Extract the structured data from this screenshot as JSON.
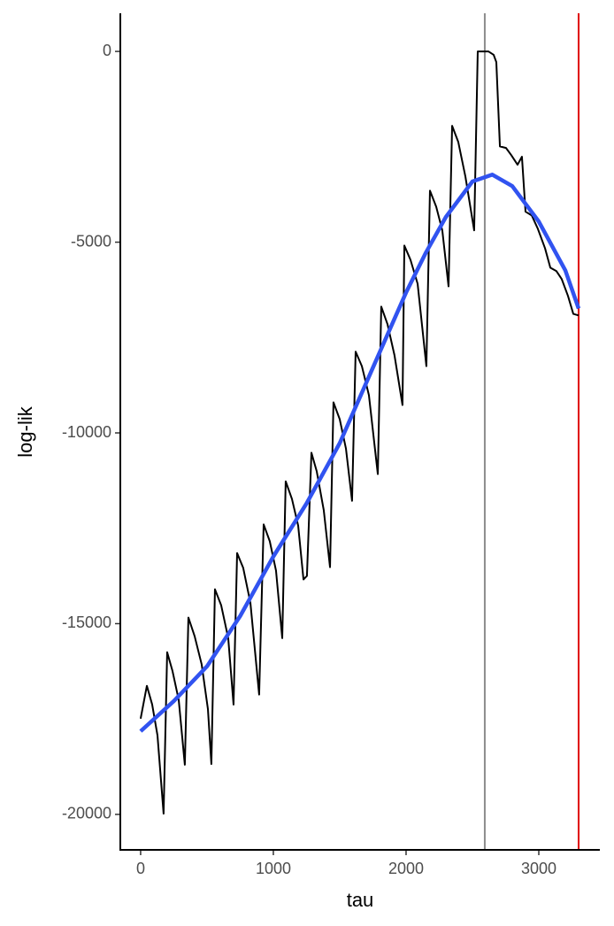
{
  "chart_data": {
    "type": "line",
    "x_label": "tau",
    "y_label": "log-lik",
    "xlim": [
      -153,
      3460
    ],
    "ylim": [
      -20930,
      1000
    ],
    "xticks": [
      0,
      1000,
      2000,
      3000
    ],
    "yticks": [
      0,
      -5000,
      -10000,
      -15000,
      -20000
    ],
    "grid": false,
    "series": [
      {
        "color": "#000000",
        "width": 2,
        "x": [
          0,
          47,
          87,
          127,
          173,
          200,
          240,
          287,
          333,
          360,
          407,
          460,
          507,
          533,
          560,
          607,
          660,
          700,
          727,
          773,
          827,
          893,
          927,
          973,
          1020,
          1067,
          1093,
          1140,
          1187,
          1227,
          1253,
          1287,
          1327,
          1380,
          1427,
          1453,
          1500,
          1547,
          1593,
          1620,
          1667,
          1720,
          1787,
          1813,
          1860,
          1913,
          1973,
          1987,
          2033,
          2087,
          2153,
          2180,
          2227,
          2273,
          2320,
          2347,
          2393,
          2447,
          2513,
          2540,
          2587,
          2620,
          2660,
          2680,
          2707,
          2753,
          2793,
          2840,
          2873,
          2900,
          2947,
          2993,
          3047,
          3087,
          3133,
          3173,
          3220,
          3260,
          3300
        ],
        "values": [
          -17490,
          -16630,
          -17120,
          -17930,
          -19980,
          -15750,
          -16240,
          -17000,
          -18700,
          -14840,
          -15330,
          -16070,
          -17240,
          -18680,
          -14100,
          -14520,
          -15380,
          -17120,
          -13150,
          -13540,
          -14450,
          -16860,
          -12400,
          -12840,
          -13610,
          -15380,
          -11270,
          -11730,
          -12430,
          -13840,
          -13750,
          -10520,
          -11010,
          -12030,
          -13520,
          -9200,
          -9640,
          -10410,
          -11780,
          -7870,
          -8250,
          -9010,
          -11080,
          -6690,
          -7150,
          -7970,
          -9270,
          -5090,
          -5460,
          -6090,
          -8250,
          -3650,
          -4070,
          -4690,
          -6160,
          -1950,
          -2370,
          -3280,
          -4690,
          0,
          0,
          0,
          -90,
          -280,
          -2490,
          -2530,
          -2720,
          -2970,
          -2760,
          -4200,
          -4300,
          -4650,
          -5160,
          -5670,
          -5760,
          -5970,
          -6410,
          -6880,
          -6920
        ]
      },
      {
        "color": "#3153f0",
        "width": 4.5,
        "x": [
          0,
          250,
          500,
          750,
          1000,
          1250,
          1500,
          1750,
          2000,
          2150,
          2300,
          2500,
          2650,
          2800,
          3000,
          3200,
          3300
        ],
        "values": [
          -17820,
          -17030,
          -16120,
          -14800,
          -13240,
          -11850,
          -10270,
          -8290,
          -6320,
          -5270,
          -4340,
          -3410,
          -3230,
          -3530,
          -4460,
          -5740,
          -6740
        ]
      }
    ],
    "vlines": [
      2593,
      3300
    ],
    "vline_colors": [
      "#8c8c8c",
      "#e00000"
    ]
  }
}
